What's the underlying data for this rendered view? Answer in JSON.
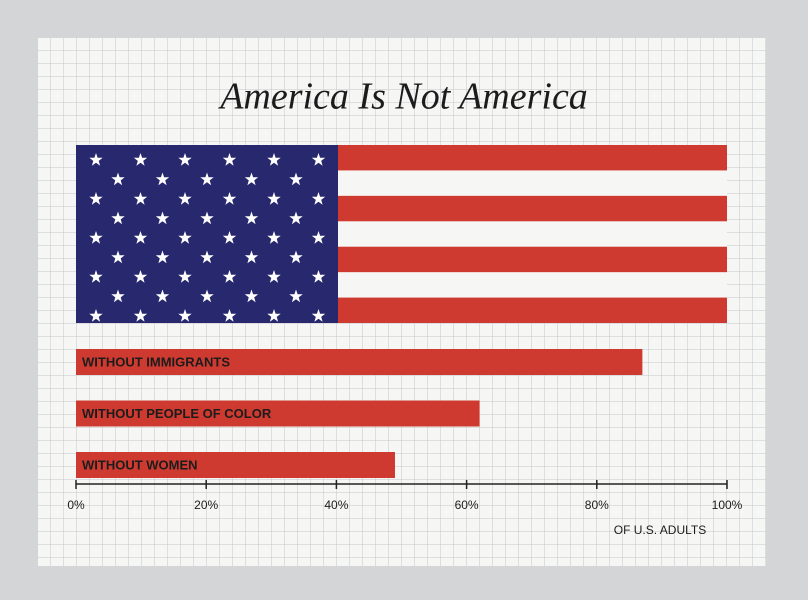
{
  "chart_data": {
    "type": "bar",
    "orientation": "horizontal",
    "title": "America Is Not America",
    "categories": [
      null,
      "WITHOUT IMMIGRANTS",
      "WITHOUT PEOPLE OF COLOR",
      "WITHOUT WOMEN"
    ],
    "values": [
      100,
      87,
      62,
      49
    ],
    "color": "#cf3a30",
    "xlim": [
      0,
      100
    ],
    "xticks": [
      {
        "value": 0,
        "label": "0%"
      },
      {
        "value": 20,
        "label": "20%"
      },
      {
        "value": 40,
        "label": "40%"
      },
      {
        "value": 60,
        "label": "60%"
      },
      {
        "value": 80,
        "label": "80%"
      },
      {
        "value": 100,
        "label": "100%"
      }
    ],
    "x_label": "OF U.S. ADULTS"
  }
}
